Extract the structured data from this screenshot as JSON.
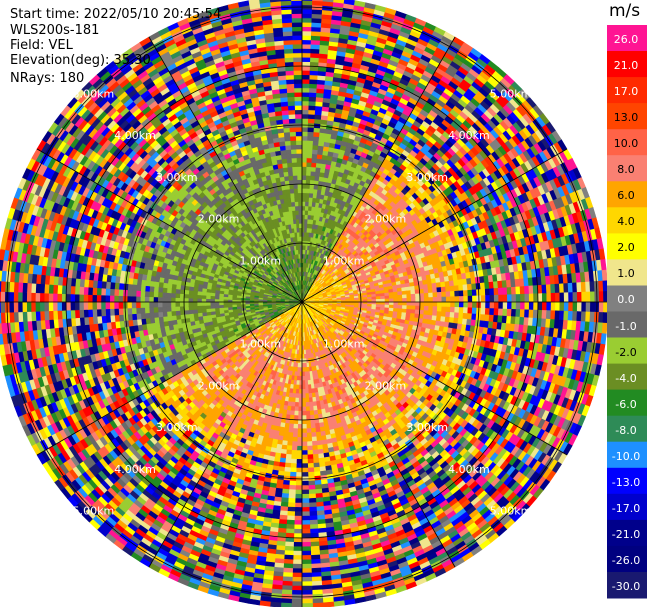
{
  "header": {
    "start_time": "Start time: 2022/05/10 20:45:54",
    "instrument": "WLS200s-181",
    "field": "Field: VEL",
    "elevation": "Elevation(deg): 35.30",
    "nrays": "NRays: 180"
  },
  "colorbar": {
    "unit": "m/s",
    "levels": [
      "26.0",
      "21.0",
      "17.0",
      "13.0",
      "10.0",
      "8.0",
      "6.0",
      "4.0",
      "2.0",
      "1.0",
      "0.0",
      "-1.0",
      "-2.0",
      "-4.0",
      "-6.0",
      "-8.0",
      "-10.0",
      "-13.0",
      "-17.0",
      "-21.0",
      "-26.0",
      "-30.0"
    ],
    "colors": [
      "#ff1493",
      "#ff0000",
      "#ff2a00",
      "#ff4500",
      "#ff6347",
      "#fa8072",
      "#ffa500",
      "#ffd700",
      "#ffff00",
      "#f0e68c",
      "#808080",
      "#696969",
      "#9acd32",
      "#6b8e23",
      "#228b22",
      "#2e8b57",
      "#1e90ff",
      "#0000ff",
      "#0000cd",
      "#00008b",
      "#000080",
      "#191970"
    ]
  },
  "chart_data": {
    "type": "heatmap",
    "projection": "polar-ppi",
    "field": "VEL",
    "units": "m/s",
    "range_rings_km": [
      1.0,
      2.0,
      3.0,
      4.0,
      5.0
    ],
    "range_ring_labels": [
      "1.00km",
      "2.00km",
      "3.00km",
      "4.00km",
      "5.00km"
    ],
    "max_range_km": 5.1,
    "azimuth_lines_deg": [
      0,
      30,
      60,
      90,
      120,
      150,
      180,
      210,
      240,
      270,
      300,
      330
    ],
    "valid_data_range_km": 3.1,
    "pattern": {
      "approaching_sector_azimuth_deg": [
        240,
        30
      ],
      "approaching_velocity_ms": [
        -8.0,
        -1.0
      ],
      "receding_sector_azimuth_deg": [
        30,
        240
      ],
      "receding_velocity_ms": [
        1.0,
        10.0
      ],
      "noise_beyond_km": 3.1
    }
  }
}
